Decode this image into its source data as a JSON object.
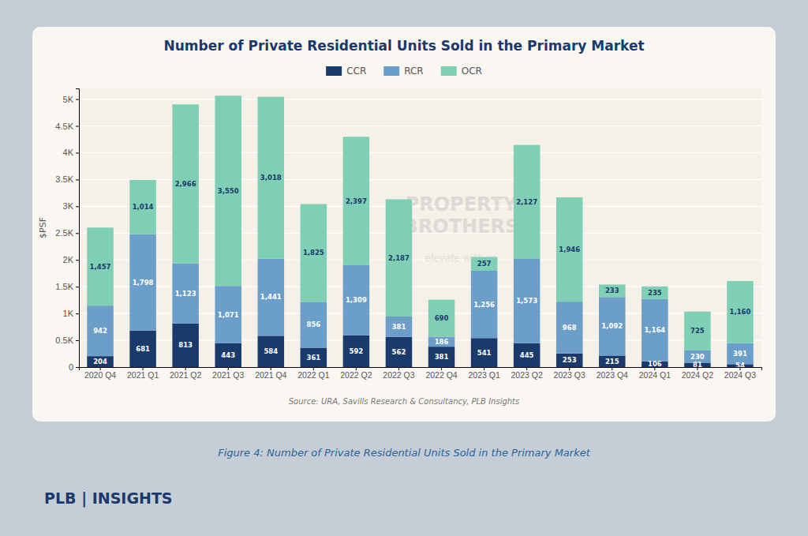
{
  "chart_data": {
    "type": "bar",
    "stacked": true,
    "title": "Number of Private Residential Units Sold in the Primary Market",
    "ylabel": "$PSF",
    "categories": [
      "2020 Q4",
      "2021 Q1",
      "2021 Q2",
      "2021 Q3",
      "2021 Q4",
      "2022 Q1",
      "2022 Q2",
      "2022 Q3",
      "2022 Q4",
      "2023 Q1",
      "2023 Q2",
      "2023 Q3",
      "2023 Q4",
      "2024 Q1",
      "2024 Q2",
      "2024 Q3"
    ],
    "series": [
      {
        "name": "CCR",
        "color": "#1a3a6b",
        "values": [
          204,
          681,
          813,
          443,
          584,
          361,
          592,
          562,
          381,
          541,
          445,
          253,
          215,
          106,
          81,
          54
        ]
      },
      {
        "name": "RCR",
        "color": "#6b9ec8",
        "values": [
          942,
          1798,
          1123,
          1071,
          1441,
          856,
          1309,
          381,
          186,
          1256,
          1573,
          968,
          1092,
          1164,
          230,
          391
        ],
        "value_labels": [
          "942",
          "1,798",
          "1,123",
          "1,071",
          "1,441",
          "856",
          "1,309",
          "381",
          "186",
          "1,256",
          "1,573",
          "968",
          "1,092",
          "1,164",
          "230",
          "391"
        ]
      },
      {
        "name": "OCR",
        "color": "#7ecfb3",
        "values": [
          1457,
          1014,
          2966,
          3550,
          3018,
          1825,
          2397,
          2187,
          690,
          257,
          2127,
          1946,
          233,
          235,
          725,
          1160
        ],
        "value_labels": [
          "1,457",
          "1,014",
          "2,966",
          "3,550",
          "3,018",
          "1,825",
          "2,397",
          "2,187",
          "690",
          "257",
          "2,127",
          "1,946",
          "233",
          "235",
          "725",
          "1,160"
        ]
      }
    ],
    "ylim": [
      0,
      5200
    ],
    "yticks": [
      0,
      {
        "value": 500,
        "label": "0.5K"
      },
      {
        "value": 1000,
        "label": "1K"
      },
      {
        "value": 1500,
        "label": "1.5K"
      },
      {
        "value": 2000,
        "label": "2K"
      },
      {
        "value": 2500,
        "label": "2.5K"
      },
      {
        "value": 3000,
        "label": "3K"
      },
      {
        "value": 3500,
        "label": "3.5K"
      },
      {
        "value": 4000,
        "label": "4K"
      },
      {
        "value": 4500,
        "label": "4.5K"
      },
      {
        "value": 5000,
        "label": "5K"
      }
    ],
    "grid": true,
    "legend": "top",
    "data_labels": true,
    "annotations": [
      "Source: URA, Savills Research & Consultancy, PLB Insights",
      "Figure 4: Number of Private Residential Units Sold in the Primary Market",
      "PROPERTY",
      "BROTHERS",
      "elevate with us",
      "PLB | INSIGHTS"
    ]
  }
}
